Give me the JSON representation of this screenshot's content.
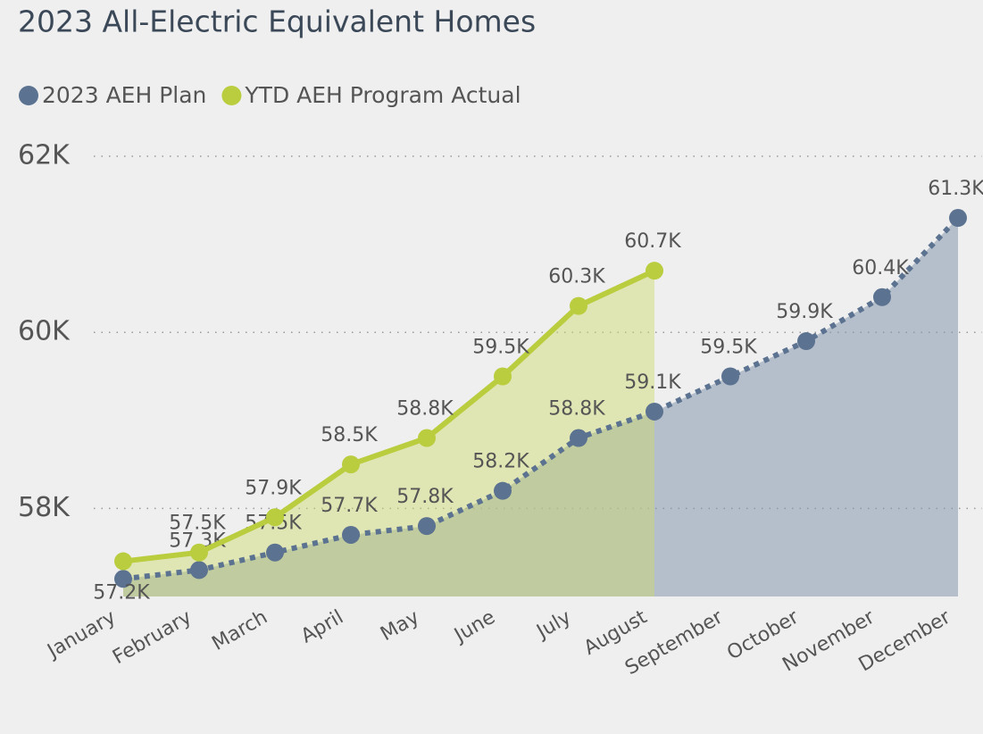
{
  "chart_data": {
    "type": "line",
    "title": "2023 All-Electric Equivalent Homes",
    "categories": [
      "January",
      "February",
      "March",
      "April",
      "May",
      "June",
      "July",
      "August",
      "September",
      "October",
      "November",
      "December"
    ],
    "series": [
      {
        "name": "2023 AEH Plan",
        "color": "#5b7290",
        "area_color": "#8597ad",
        "dashed": true,
        "values": [
          57200,
          57300,
          57500,
          57700,
          57800,
          58200,
          58800,
          59100,
          59500,
          59900,
          60400,
          61300
        ],
        "value_labels": [
          "57.2K",
          "57.3K",
          "57.5K",
          "57.7K",
          "57.8K",
          "58.2K",
          "58.8K",
          "59.1K",
          "59.5K",
          "59.9K",
          "60.4K",
          "61.3K"
        ]
      },
      {
        "name": "YTD AEH Program Actual",
        "color": "#bacd3f",
        "area_color": "#cfdc6a",
        "dashed": false,
        "values": [
          57400,
          57500,
          57900,
          58500,
          58800,
          59500,
          60300,
          60700,
          null,
          null,
          null,
          null
        ],
        "value_labels": [
          null,
          "57.5K",
          "57.9K",
          "58.5K",
          "58.8K",
          "59.5K",
          "60.3K",
          "60.7K",
          null,
          null,
          null,
          null
        ]
      }
    ],
    "ylim": [
      57000,
      62000
    ],
    "yticks": [
      {
        "value": 58000,
        "label": "58K"
      },
      {
        "value": 60000,
        "label": "60K"
      },
      {
        "value": 62000,
        "label": "62K"
      }
    ],
    "grid": true,
    "legend": "top-left",
    "area": true
  }
}
